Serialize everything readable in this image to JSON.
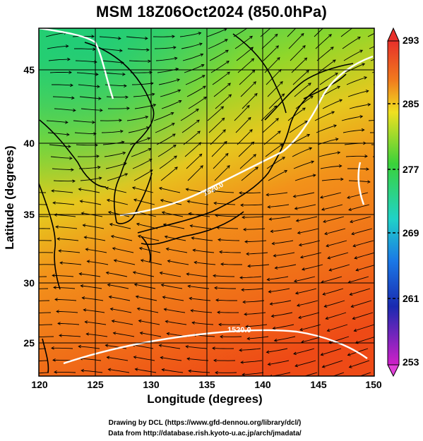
{
  "title": "MSM 18Z06Oct2024 (850.0hPa)",
  "axes": {
    "xlabel": "Longitude (degrees)",
    "ylabel": "Latitude  (degrees)",
    "x_ticks": [
      "120",
      "125",
      "130",
      "135",
      "140",
      "145",
      "150"
    ],
    "y_ticks": [
      "25",
      "30",
      "35",
      "40",
      "45"
    ]
  },
  "colorbar": {
    "ticks": [
      "293",
      "285",
      "277",
      "269",
      "261",
      "253"
    ],
    "min": 253,
    "max": 293
  },
  "contour_labels": [
    "1520.0"
  ],
  "credits": {
    "line1": "Drawing by DCL (https://www.gfd-dennou.org/library/dcl/)",
    "line2": "Data from http://database.rish.kyoto-u.ac.jp/arch/jmadata/"
  },
  "chart_data": {
    "type": "heatmap",
    "title": "MSM 18Z06Oct2024 (850.0hPa)",
    "xlabel": "Longitude (degrees)",
    "ylabel": "Latitude  (degrees)",
    "xlim": [
      120,
      150
    ],
    "ylim": [
      22.5,
      47.5
    ],
    "x_ticks": [
      120,
      125,
      130,
      135,
      140,
      145,
      150
    ],
    "y_ticks": [
      25,
      30,
      35,
      40,
      45
    ],
    "colorbar_range": [
      253,
      293
    ],
    "colorbar_ticks": [
      293,
      285,
      277,
      269,
      261,
      253
    ],
    "grid": true,
    "overlays": [
      "streamlines",
      "coastlines",
      "geopotential height contour 1520.0"
    ]
  }
}
